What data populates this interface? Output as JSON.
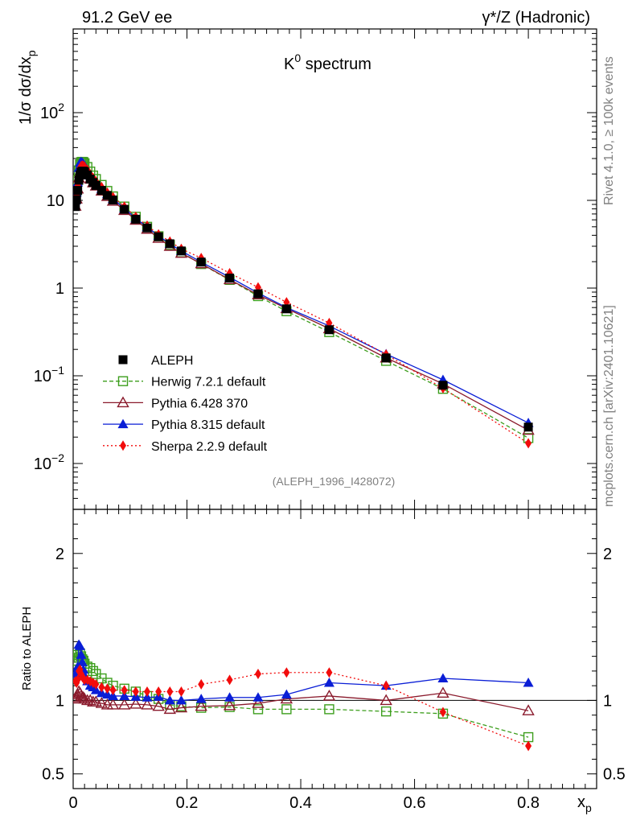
{
  "header": {
    "left": "91.2 GeV ee",
    "right": "γ*/Z (Hadronic)"
  },
  "side_text": {
    "rivet": "Rivet 4.1.0, ≥ 100k events",
    "mcplots": "mcplots.cern.ch [arXiv:2401.10621]"
  },
  "chart_data": {
    "type": "scatter",
    "title_base": "K",
    "title_sup": "0",
    "title_rest": " spectrum",
    "ylabel_main": "1/σ  dσ/dx_p",
    "ylabel_ratio": "Ratio to ALEPH",
    "xlabel": "x",
    "xlabel_sub": "p",
    "reference": "(ALEPH_1996_I428072)",
    "xlim": [
      0,
      0.92
    ],
    "ylim_main": [
      0.003,
      900
    ],
    "ylim_ratio": [
      0.4,
      2.3
    ],
    "x_ticks": [
      "0",
      "0.2",
      "0.4",
      "0.6",
      "0.8"
    ],
    "x_tick_values": [
      0,
      0.2,
      0.4,
      0.6,
      0.8
    ],
    "y_ticks_main": [
      {
        "v": 0.01,
        "base": "10",
        "sup": "−2"
      },
      {
        "v": 0.1,
        "base": "10",
        "sup": "−1"
      },
      {
        "v": 1,
        "base": "1",
        "sup": ""
      },
      {
        "v": 10,
        "base": "10",
        "sup": ""
      },
      {
        "v": 100,
        "base": "10",
        "sup": "2"
      }
    ],
    "y_ticks_ratio": [
      {
        "v": 0.5,
        "label": "0.5"
      },
      {
        "v": 1,
        "label": "1"
      },
      {
        "v": 2,
        "label": "2"
      }
    ],
    "x": [
      0.004,
      0.006,
      0.008,
      0.01,
      0.012,
      0.014,
      0.016,
      0.018,
      0.02,
      0.025,
      0.03,
      0.035,
      0.04,
      0.05,
      0.06,
      0.07,
      0.09,
      0.11,
      0.13,
      0.15,
      0.17,
      0.19,
      0.225,
      0.275,
      0.325,
      0.375,
      0.45,
      0.55,
      0.65,
      0.8
    ],
    "series": [
      {
        "name": "ALEPH",
        "color": "#000000",
        "marker": "square",
        "line": "none",
        "values": [
          8.5,
          10.2,
          13.0,
          17.0,
          19.5,
          21.0,
          21.5,
          21.5,
          21.2,
          19.5,
          17.5,
          16.0,
          14.8,
          13.0,
          11.4,
          10.1,
          7.9,
          6.1,
          4.85,
          3.85,
          3.2,
          2.65,
          1.98,
          1.3,
          0.86,
          0.58,
          0.335,
          0.16,
          0.078,
          0.026
        ],
        "ratio": [
          1,
          1,
          1,
          1,
          1,
          1,
          1,
          1,
          1,
          1,
          1,
          1,
          1,
          1,
          1,
          1,
          1,
          1,
          1,
          1,
          1,
          1,
          1,
          1,
          1,
          1,
          1,
          1,
          1,
          1
        ]
      },
      {
        "name": "Herwig 7.2.1 default",
        "color": "#3d9e1d",
        "marker": "open-square",
        "line": "dashed",
        "values": [
          10.8,
          13.0,
          17.0,
          22.0,
          25.7,
          27.3,
          27.5,
          27.3,
          26.5,
          24.0,
          21.3,
          19.2,
          17.5,
          15.0,
          12.8,
          11.1,
          8.5,
          6.5,
          5.0,
          3.9,
          3.1,
          2.55,
          1.88,
          1.24,
          0.81,
          0.545,
          0.315,
          0.148,
          0.071,
          0.0195
        ],
        "ratio": [
          1.27,
          1.27,
          1.31,
          1.29,
          1.32,
          1.3,
          1.28,
          1.27,
          1.25,
          1.23,
          1.22,
          1.2,
          1.18,
          1.15,
          1.12,
          1.1,
          1.08,
          1.06,
          1.03,
          1.01,
          0.97,
          0.96,
          0.95,
          0.955,
          0.94,
          0.94,
          0.94,
          0.925,
          0.91,
          0.75
        ]
      },
      {
        "name": "Pythia 6.428 370",
        "color": "#8a1a2c",
        "marker": "open-triangle",
        "line": "solid",
        "values": [
          8.6,
          10.4,
          13.5,
          18.0,
          20.5,
          21.7,
          22.0,
          21.9,
          21.4,
          19.6,
          17.5,
          15.9,
          14.6,
          12.8,
          11.1,
          9.8,
          7.7,
          5.95,
          4.7,
          3.7,
          3.0,
          2.5,
          1.9,
          1.25,
          0.84,
          0.585,
          0.345,
          0.16,
          0.081,
          0.024
        ],
        "ratio": [
          1.01,
          1.02,
          1.04,
          1.06,
          1.05,
          1.03,
          1.02,
          1.02,
          1.01,
          1.0,
          1.0,
          0.99,
          0.99,
          0.98,
          0.97,
          0.97,
          0.97,
          0.975,
          0.97,
          0.96,
          0.94,
          0.95,
          0.96,
          0.965,
          0.98,
          1.01,
          1.03,
          1.0,
          1.05,
          0.93
        ]
      },
      {
        "name": "Pythia 8.315 default",
        "color": "#0a1ed6",
        "marker": "triangle",
        "line": "solid",
        "values": [
          10.0,
          12.3,
          16.0,
          23.5,
          26.8,
          27.5,
          27.0,
          26.0,
          24.9,
          22.0,
          19.2,
          17.4,
          15.9,
          13.6,
          11.8,
          10.4,
          8.1,
          6.25,
          4.95,
          3.95,
          3.2,
          2.65,
          1.98,
          1.33,
          0.88,
          0.6,
          0.37,
          0.177,
          0.09,
          0.029
        ],
        "ratio": [
          1.18,
          1.2,
          1.23,
          1.38,
          1.37,
          1.31,
          1.26,
          1.21,
          1.17,
          1.13,
          1.1,
          1.09,
          1.07,
          1.05,
          1.04,
          1.03,
          1.03,
          1.025,
          1.02,
          1.025,
          1.0,
          1.0,
          1.01,
          1.02,
          1.02,
          1.04,
          1.12,
          1.1,
          1.15,
          1.12
        ]
      },
      {
        "name": "Sherpa 2.2.9 default",
        "color": "#f20c0c",
        "marker": "diamond",
        "line": "dotted",
        "values": [
          9.6,
          11.5,
          14.8,
          20.5,
          23.5,
          24.7,
          25.0,
          24.8,
          24.2,
          22.3,
          19.8,
          18.0,
          16.5,
          14.2,
          12.3,
          10.9,
          8.5,
          6.5,
          5.15,
          4.1,
          3.4,
          2.8,
          2.2,
          1.48,
          1.02,
          0.69,
          0.4,
          0.175,
          0.072,
          0.017
        ],
        "ratio": [
          1.13,
          1.12,
          1.14,
          1.2,
          1.21,
          1.18,
          1.16,
          1.15,
          1.14,
          1.14,
          1.13,
          1.12,
          1.11,
          1.09,
          1.08,
          1.07,
          1.07,
          1.06,
          1.06,
          1.06,
          1.06,
          1.06,
          1.11,
          1.14,
          1.18,
          1.19,
          1.19,
          1.1,
          0.92,
          0.69
        ]
      }
    ]
  }
}
